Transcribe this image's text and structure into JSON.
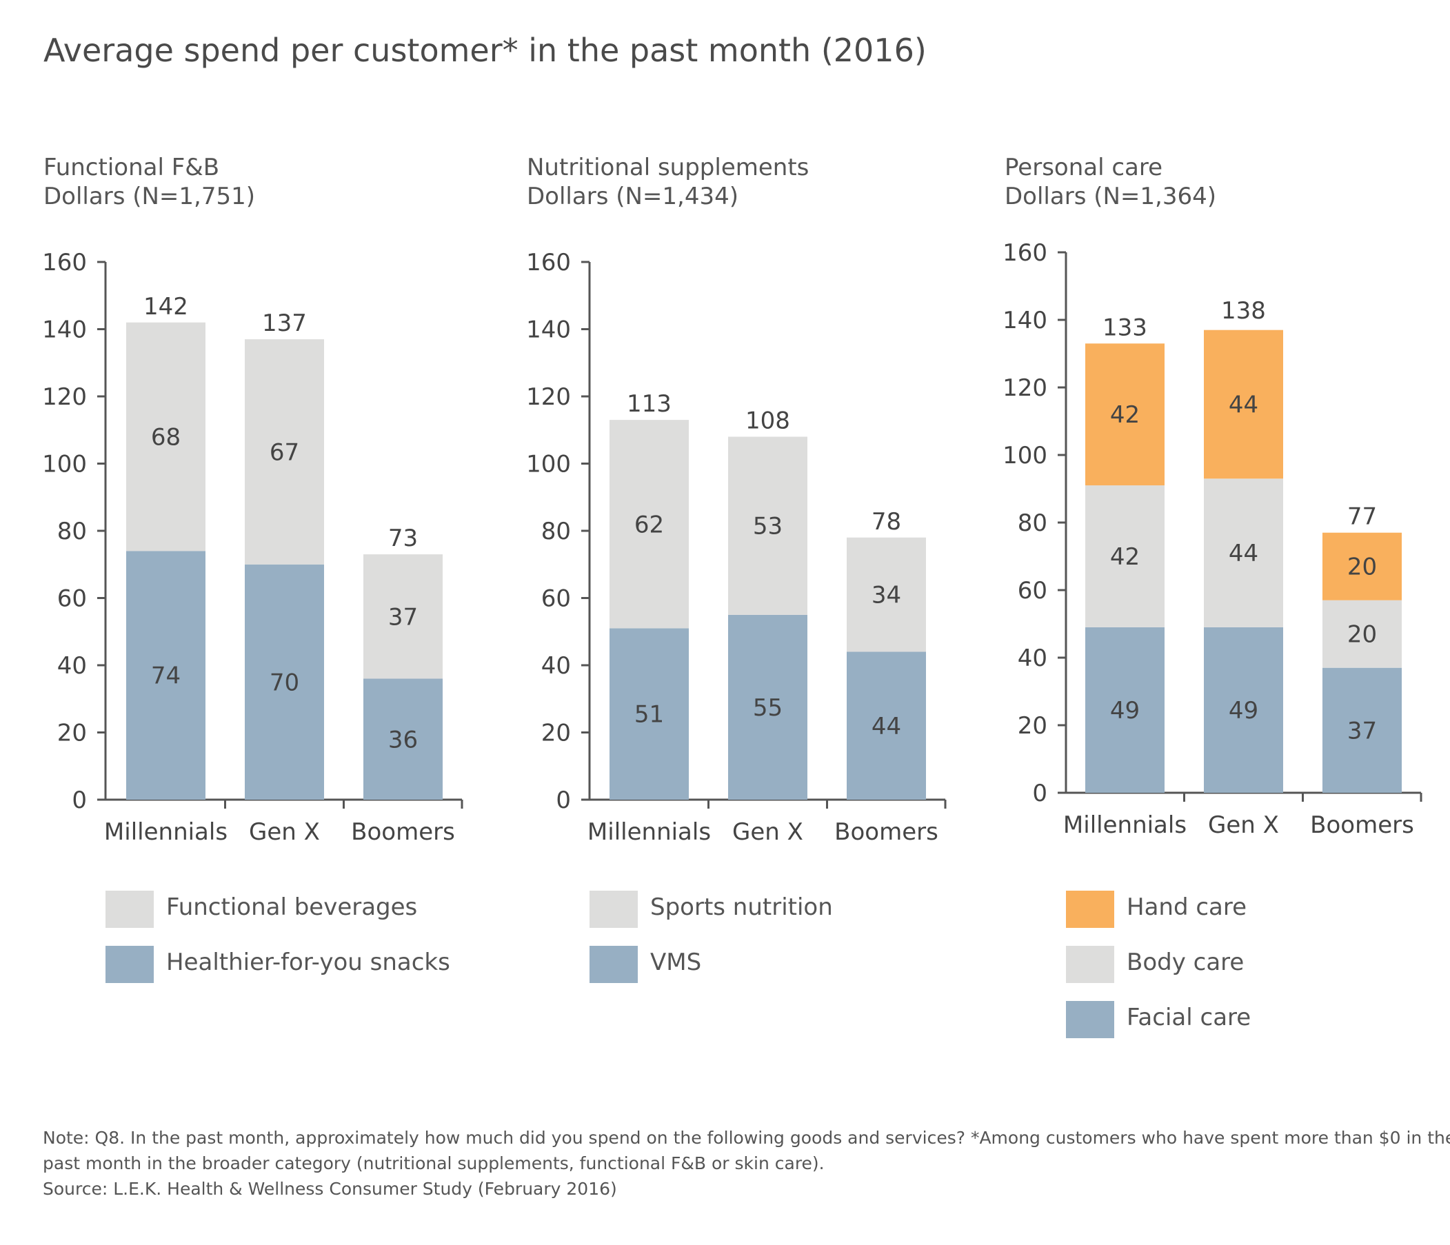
{
  "page": {
    "title": "Average spend per customer* in the past month (2016)"
  },
  "panels": [
    {
      "title": "Functional F&B",
      "subtitle": "Dollars (N=1,751)"
    },
    {
      "title": "Nutritional supplements",
      "subtitle": "Dollars (N=1,434)"
    },
    {
      "title": "Personal care",
      "subtitle": "Dollars (N=1,364)"
    }
  ],
  "chart_data": [
    {
      "type": "bar",
      "stacked": true,
      "title": "Functional F&B",
      "subtitle": "Dollars (N=1,751)",
      "categories": [
        "Millennials",
        "Gen X",
        "Boomers"
      ],
      "ylim": [
        0,
        160
      ],
      "yticks": [
        0,
        20,
        40,
        60,
        80,
        100,
        120,
        140,
        160
      ],
      "series": [
        {
          "name": "Healthier-for-you snacks",
          "values": [
            74,
            70,
            36
          ],
          "color": "#97afc3"
        },
        {
          "name": "Functional beverages",
          "values": [
            68,
            67,
            37
          ],
          "color": "#dddddc"
        }
      ],
      "totals": [
        142,
        137,
        73
      ],
      "legend": [
        {
          "label": "Functional beverages",
          "color": "#dddddc"
        },
        {
          "label": "Healthier-for-you snacks",
          "color": "#97afc3"
        }
      ]
    },
    {
      "type": "bar",
      "stacked": true,
      "title": "Nutritional supplements",
      "subtitle": "Dollars (N=1,434)",
      "categories": [
        "Millennials",
        "Gen X",
        "Boomers"
      ],
      "ylim": [
        0,
        160
      ],
      "yticks": [
        0,
        20,
        40,
        60,
        80,
        100,
        120,
        140,
        160
      ],
      "series": [
        {
          "name": "VMS",
          "values": [
            51,
            55,
            44
          ],
          "color": "#97afc3"
        },
        {
          "name": "Sports nutrition",
          "values": [
            62,
            53,
            34
          ],
          "color": "#dddddc"
        }
      ],
      "totals": [
        113,
        108,
        78
      ],
      "legend": [
        {
          "label": "Sports nutrition",
          "color": "#dddddc"
        },
        {
          "label": "VMS",
          "color": "#97afc3"
        }
      ]
    },
    {
      "type": "bar",
      "stacked": true,
      "title": "Personal care",
      "subtitle": "Dollars (N=1,364)",
      "categories": [
        "Millennials",
        "Gen X",
        "Boomers"
      ],
      "ylim": [
        0,
        160
      ],
      "yticks": [
        0,
        20,
        40,
        60,
        80,
        100,
        120,
        140,
        160
      ],
      "series": [
        {
          "name": "Facial care",
          "values": [
            49,
            49,
            37
          ],
          "color": "#97afc3"
        },
        {
          "name": "Body care",
          "values": [
            42,
            44,
            20
          ],
          "color": "#dddddc"
        },
        {
          "name": "Hand care",
          "values": [
            42,
            44,
            20
          ],
          "color": "#f9b05d"
        }
      ],
      "totals": [
        133,
        138,
        77
      ],
      "legend": [
        {
          "label": "Hand care",
          "color": "#f9b05d"
        },
        {
          "label": "Body care",
          "color": "#dddddc"
        },
        {
          "label": "Facial care",
          "color": "#97afc3"
        }
      ]
    }
  ],
  "footnote": {
    "line1": "Note: Q8. In the past month, approximately how much did you spend on the following goods and services? *Among customers who have spent more than $0 in the",
    "line2": "past month in the broader category (nutritional supplements, functional F&B or skin care).",
    "line3": "Source: L.E.K. Health & Wellness Consumer Study (February 2016)"
  }
}
